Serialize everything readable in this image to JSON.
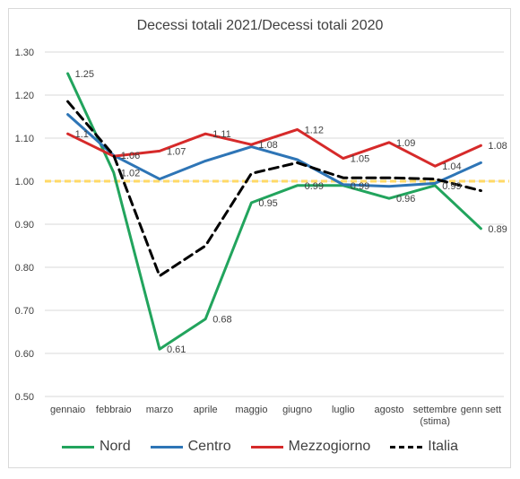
{
  "chart_data": {
    "type": "line",
    "title": "Decessi totali 2021/Decessi totali 2020",
    "categories": [
      "gennaio",
      "febbraio",
      "marzo",
      "aprile",
      "maggio",
      "giugno",
      "luglio",
      "agosto",
      "settembre",
      "genn sett"
    ],
    "category_sublabels": [
      "",
      "",
      "",
      "",
      "",
      "",
      "",
      "",
      "(stima)",
      ""
    ],
    "ylim": [
      0.5,
      1.3
    ],
    "yticks": [
      "0.50",
      "0.60",
      "0.70",
      "0.80",
      "0.90",
      "1.00",
      "1.10",
      "1.20",
      "1.30"
    ],
    "grid": true,
    "legend_position": "bottom",
    "reference_line": 1.0,
    "reference_color": "#ffd966",
    "series": [
      {
        "name": "Nord",
        "color": "#22a45d",
        "dashed": false,
        "values": [
          1.25,
          1.02,
          0.61,
          0.68,
          0.95,
          0.99,
          0.99,
          0.96,
          0.99,
          0.89
        ],
        "labels": [
          "1.25",
          "1.02",
          "0.61",
          "0.68",
          "0.95",
          "0.99",
          "0.99",
          "0.96",
          "0.99",
          "0.89"
        ]
      },
      {
        "name": "Centro",
        "color": "#2e75b6",
        "dashed": false,
        "values": [
          1.155,
          1.06,
          1.005,
          1.047,
          1.08,
          1.05,
          0.992,
          0.988,
          0.995,
          1.043
        ],
        "labels": [
          "",
          "1.06",
          "",
          "",
          "",
          "",
          "",
          "",
          "",
          ""
        ]
      },
      {
        "name": "Mezzogiorno",
        "color": "#d62a2a",
        "dashed": false,
        "values": [
          1.11,
          1.058,
          1.07,
          1.11,
          1.085,
          1.12,
          1.053,
          1.09,
          1.035,
          1.083
        ],
        "labels": [
          "1.1",
          "",
          "1.07",
          "1.11",
          "1.08",
          "1.12",
          "1.05",
          "1.09",
          "1.04",
          "1.08"
        ]
      },
      {
        "name": "Italia",
        "color": "#000000",
        "dashed": true,
        "values": [
          1.185,
          1.06,
          0.78,
          0.85,
          1.018,
          1.043,
          1.008,
          1.008,
          1.005,
          0.978
        ],
        "labels": [
          "",
          "",
          "",
          "",
          "",
          "",
          "",
          "",
          "",
          ""
        ]
      }
    ]
  }
}
